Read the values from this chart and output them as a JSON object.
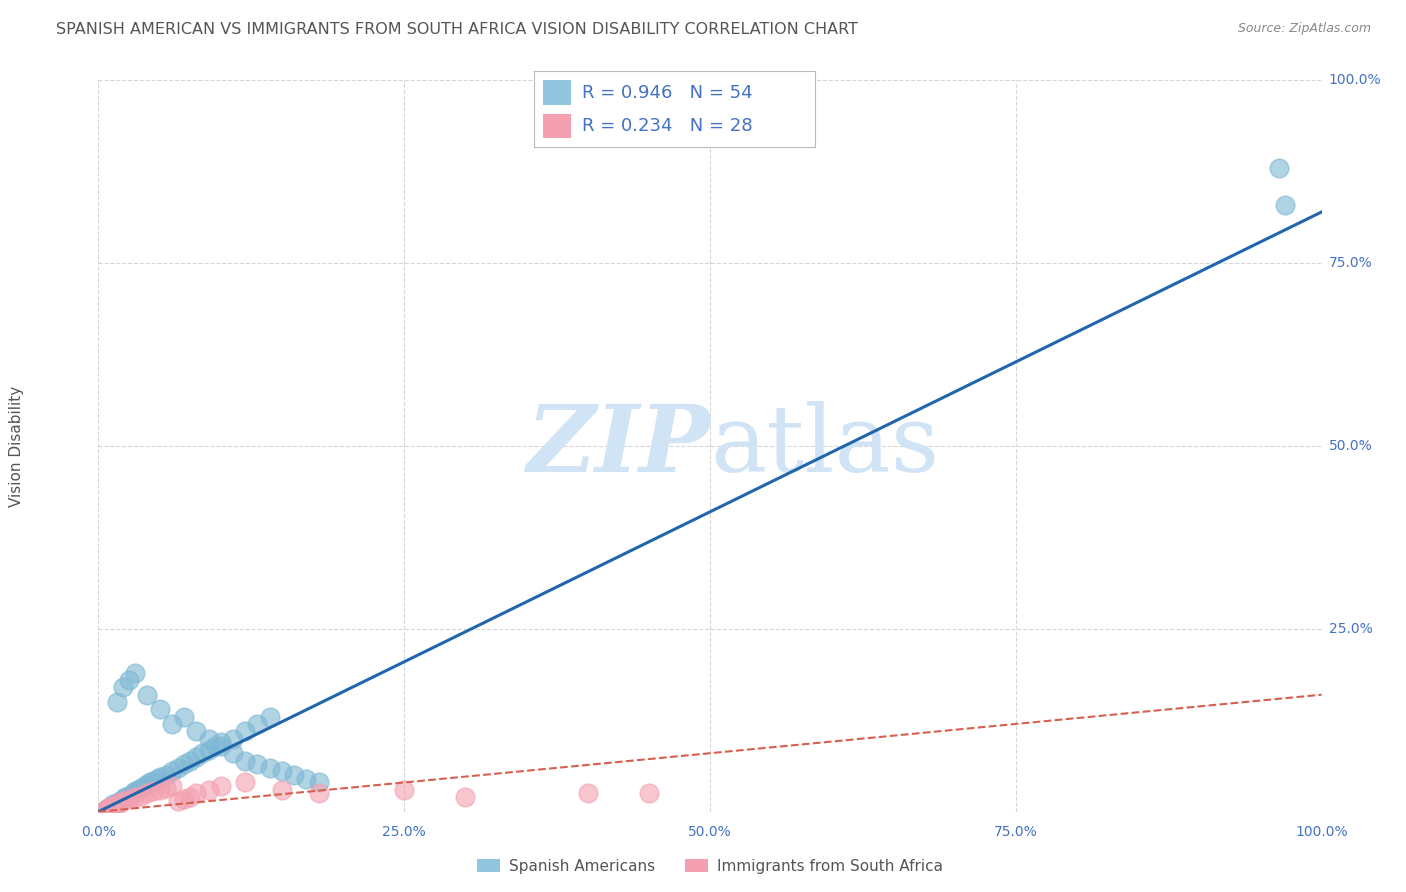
{
  "title": "SPANISH AMERICAN VS IMMIGRANTS FROM SOUTH AFRICA VISION DISABILITY CORRELATION CHART",
  "source": "Source: ZipAtlas.com",
  "ylabel": "Vision Disability",
  "xlim": [
    0,
    1.0
  ],
  "ylim": [
    0,
    1.0
  ],
  "xtick_vals": [
    0.0,
    0.25,
    0.5,
    0.75,
    1.0
  ],
  "xtick_labels": [
    "0.0%",
    "25.0%",
    "50.0%",
    "75.0%",
    "100.0%"
  ],
  "right_ytick_labels": [
    "100.0%",
    "75.0%",
    "50.0%",
    "25.0%"
  ],
  "right_ytick_vals": [
    1.0,
    0.75,
    0.5,
    0.25
  ],
  "legend1_R": "0.946",
  "legend1_N": "54",
  "legend2_R": "0.234",
  "legend2_N": "28",
  "blue_color": "#92c5de",
  "pink_color": "#f4a582",
  "blue_scatter_color": "#7eb8d4",
  "pink_scatter_color": "#f4a0b0",
  "blue_line_color": "#2166ac",
  "pink_line_color": "#d6604d",
  "watermark_color": "#d0e4f5",
  "legend_label1": "Spanish Americans",
  "legend_label2": "Immigrants from South Africa",
  "blue_scatter_x": [
    0.005,
    0.008,
    0.01,
    0.012,
    0.015,
    0.018,
    0.02,
    0.022,
    0.025,
    0.028,
    0.03,
    0.032,
    0.035,
    0.038,
    0.04,
    0.042,
    0.045,
    0.048,
    0.05,
    0.055,
    0.06,
    0.065,
    0.07,
    0.075,
    0.08,
    0.085,
    0.09,
    0.095,
    0.1,
    0.11,
    0.12,
    0.13,
    0.14,
    0.015,
    0.02,
    0.025,
    0.03,
    0.04,
    0.05,
    0.06,
    0.07,
    0.08,
    0.09,
    0.1,
    0.11,
    0.12,
    0.13,
    0.14,
    0.15,
    0.16,
    0.17,
    0.18,
    0.965,
    0.97
  ],
  "blue_scatter_y": [
    0.003,
    0.005,
    0.008,
    0.01,
    0.012,
    0.015,
    0.018,
    0.02,
    0.022,
    0.025,
    0.028,
    0.03,
    0.032,
    0.035,
    0.038,
    0.04,
    0.042,
    0.045,
    0.048,
    0.05,
    0.055,
    0.06,
    0.065,
    0.07,
    0.075,
    0.08,
    0.085,
    0.09,
    0.095,
    0.1,
    0.11,
    0.12,
    0.13,
    0.15,
    0.17,
    0.18,
    0.19,
    0.16,
    0.14,
    0.12,
    0.13,
    0.11,
    0.1,
    0.09,
    0.08,
    0.07,
    0.065,
    0.06,
    0.055,
    0.05,
    0.045,
    0.04,
    0.88,
    0.83
  ],
  "pink_scatter_x": [
    0.005,
    0.008,
    0.01,
    0.012,
    0.015,
    0.018,
    0.02,
    0.025,
    0.03,
    0.035,
    0.04,
    0.045,
    0.05,
    0.055,
    0.06,
    0.065,
    0.07,
    0.075,
    0.08,
    0.09,
    0.1,
    0.12,
    0.15,
    0.18,
    0.25,
    0.3,
    0.4,
    0.45
  ],
  "pink_scatter_y": [
    0.003,
    0.005,
    0.007,
    0.008,
    0.01,
    0.012,
    0.015,
    0.018,
    0.02,
    0.022,
    0.025,
    0.028,
    0.03,
    0.032,
    0.035,
    0.015,
    0.018,
    0.02,
    0.025,
    0.03,
    0.035,
    0.04,
    0.03,
    0.025,
    0.03,
    0.02,
    0.025,
    0.025
  ],
  "blue_line_x": [
    0.0,
    1.0
  ],
  "blue_line_y": [
    0.0,
    0.82
  ],
  "pink_line_x": [
    0.0,
    1.0
  ],
  "pink_line_y": [
    0.0,
    0.16
  ],
  "background_color": "#ffffff",
  "grid_color": "#cccccc",
  "title_color": "#555555",
  "axis_label_color": "#555555",
  "tick_color_blue": "#4472c4",
  "source_color": "#888888",
  "legend_text_color": "#333333"
}
